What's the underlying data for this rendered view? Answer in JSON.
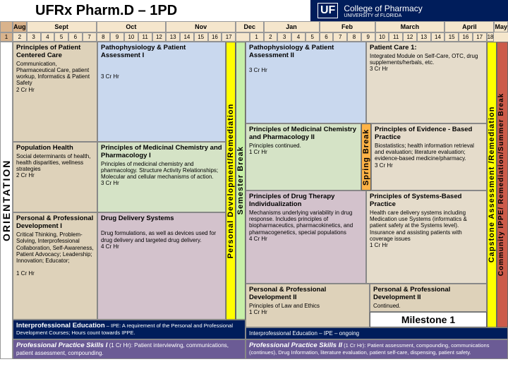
{
  "title": "UFRx Pharm.D – 1PD",
  "logo": {
    "uf": "UF",
    "text": "College of Pharmacy",
    "sub": "UNIVERSITY of FLORIDA"
  },
  "months": [
    "Aug",
    "Sept",
    "Oct",
    "Nov",
    "Dec",
    "Jan",
    "Feb",
    "March",
    "April",
    "May"
  ],
  "monthSpans": [
    1,
    5,
    5,
    5,
    2,
    4,
    4,
    5,
    5,
    1
  ],
  "weeks": [
    "1",
    "2",
    "3",
    "4",
    "5",
    "6",
    "7",
    "8",
    "9",
    "10",
    "11",
    "12",
    "13",
    "14",
    "15",
    "16",
    "17",
    "",
    "1",
    "2",
    "3",
    "4",
    "5",
    "6",
    "7",
    "8",
    "9",
    "10",
    "11",
    "12",
    "13",
    "14",
    "15",
    "16",
    "17",
    "18"
  ],
  "orientation": "ORIENTATION",
  "vbar1": "Personal Development/Remediation",
  "vbar2": "Semester Break",
  "vbar3": "Spring Break",
  "vbar4": "Capstone Assessment /Remediation",
  "vbar5": "Community IPPE/ Remediation/Summer Break",
  "fall": {
    "pcc": {
      "t": "Principles of Patient Centered Care",
      "d": "Communication, Pharmaceutical Care, patient workup, Informatics & Patient Safety",
      "cr": "2 Cr Hr"
    },
    "pop": {
      "t": "Population Health",
      "d": "Social determinants of health, health disparities, wellness strategies",
      "cr": "2 Cr Hr"
    },
    "ppd": {
      "t": "Personal & Professional Development I",
      "d": "Critical Thinking, Problem-Solving, Interprofessional Collaboration, Self-Awareness, Patient Advocacy; Leadership; Innovation; Educator;",
      "cr": "1 Cr Hr"
    },
    "pa1": {
      "t": "Pathophysiology & Patient Assessment I",
      "d": "",
      "cr": "3 Cr Hr"
    },
    "pmc": {
      "t": "Principles of Medicinal Chemistry and Pharmacology I",
      "d": "Principles of medicinal chemistry and pharmacology. Structure Activity Relationships; Molecular and cellular mechanisms of action.",
      "cr": "3 Cr Hr"
    },
    "dds": {
      "t": "Drug Delivery Systems",
      "d": "Drug formulations, as well as devices used for drug delivery and targeted drug delivery.",
      "cr": "4 Cr Hr"
    },
    "ipe": "Interprofessional Education – IPE: A requirement of the Personal and Professional Development Courses; Hours count towards IPPE.",
    "pps": {
      "t": "Professional Practice Skills I",
      "d": "(1 Cr Hr): Patient interviewing, communications, patient assessment, compounding."
    }
  },
  "spring": {
    "pa2": {
      "t": "Pathophysiology & Patient Assessment II",
      "cr": "3 Cr Hr"
    },
    "pc1": {
      "t": "Patient Care 1:",
      "d": "Integrated Module on Self-Care, OTC, drug supplements/herbals, etc.",
      "cr": "3 Cr Hr"
    },
    "pmc2": {
      "t": "Principles of Medicinal Chemistry and Pharmacology II",
      "d": "Principles continued.",
      "cr": "1 Cr Hr"
    },
    "ebp": {
      "t": "Principles of Evidence - Based Practice",
      "d": "Biostatistics; health information retrieval and evaluation; literature evaluation; evidence-based medicine/pharmacy.",
      "cr": "3 Cr Hr"
    },
    "pdt": {
      "t": "Principles of Drug Therapy Individualization",
      "d": "Mechanisms underlying variability in drug response. Includes principles of biopharmaceutics, pharmacokinetics, and pharmacogenetics, special populations",
      "cr": "4 Cr Hr"
    },
    "psbp": {
      "t": "Principles of Systems-Based Practice",
      "d": "Health care delivery systems including Medication use Systems (informatics & patient safety at the Systems level). Insurance and assisting patients with coverage issues",
      "cr": "1 Cr Hr"
    },
    "ppd2a": {
      "t": "Personal & Professional Development II",
      "d": "Principles of Law and Ethics",
      "cr": "1 Cr Hr"
    },
    "ppd2b": {
      "t": "Personal & Professional Development II",
      "d": "Continued.",
      "cr": ""
    },
    "milestone": "Milestone 1",
    "ipe": "Interprofessional Education – IPE – ongoing",
    "pps": {
      "t": "Professional Practice Skills II",
      "d": "(1 Cr Hr): Patient assessment, compounding, communications (continues), Drug Information, literature evaluation, patient self-care, dispensing, patient safety."
    }
  }
}
